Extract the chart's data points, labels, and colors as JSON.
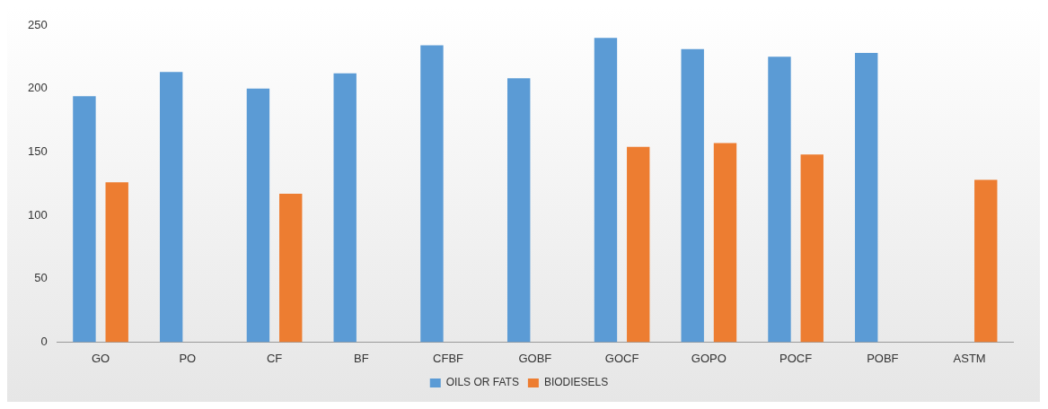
{
  "chart_data": {
    "type": "bar",
    "categories": [
      "GO",
      "PO",
      "CF",
      "BF",
      "CFBF",
      "GOBF",
      "GOCF",
      "GOPO",
      "POCF",
      "POBF",
      "ASTM"
    ],
    "series": [
      {
        "name": "OILS OR FATS",
        "color": "#5b9bd5",
        "values": [
          194,
          213,
          200,
          212,
          234,
          208,
          240,
          231,
          225,
          228,
          null
        ]
      },
      {
        "name": "BIODIESELS",
        "color": "#ed7d31",
        "values": [
          126,
          null,
          117,
          null,
          null,
          null,
          154,
          157,
          148,
          null,
          128
        ]
      }
    ],
    "ylim": [
      0,
      250
    ],
    "yticks": [
      0,
      50,
      100,
      150,
      200,
      250
    ],
    "grid": false,
    "legend": "bottom"
  }
}
